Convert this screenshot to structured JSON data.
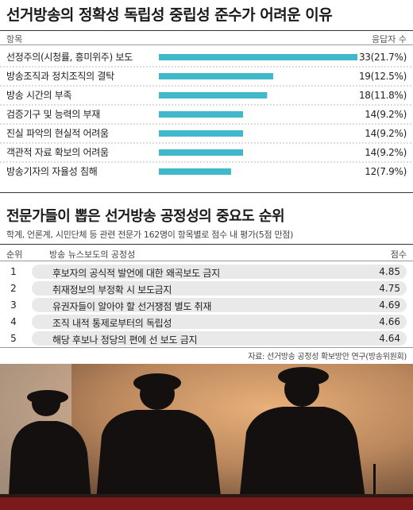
{
  "chart_data": [
    {
      "type": "bar",
      "orientation": "horizontal",
      "title": "선거방송의 정확성 독립성 중립성 준수가 어려운 이유",
      "xlabel": "항목",
      "ylabel": "응답자 수",
      "categories": [
        "선정주의(시청률, 흥미위주) 보도",
        "방송조직과 정치조직의 결탁",
        "방송 시간의 부족",
        "검증기구 및 능력의 부재",
        "진실 파악의 현실적 어려움",
        "객관적 자료 확보의 어려움",
        "방송기자의 자율성 침해"
      ],
      "values": [
        33,
        19,
        18,
        14,
        14,
        14,
        12
      ],
      "percents": [
        "21.7%",
        "12.5%",
        "11.8%",
        "9.2%",
        "9.2%",
        "9.2%",
        "7.9%"
      ],
      "bar_color": "#3fb8c9",
      "xlim": [
        0,
        33
      ]
    },
    {
      "type": "table",
      "title": "전문가들이 뽑은 선거방송 공정성의 중요도 순위",
      "subtitle": "학계, 언론계, 시민단체 등 관련 전문가 162명이 항목별로 점수 내 평가(5점 만점)",
      "columns": [
        "순위",
        "방송 뉴스보도의 공정성",
        "점수"
      ],
      "rows": [
        {
          "rank": "1",
          "item": "후보자의 공식적 발언에 대한 왜곡보도 금지",
          "score": "4.85"
        },
        {
          "rank": "2",
          "item": "취재정보의 부정확 시 보도금지",
          "score": "4.75"
        },
        {
          "rank": "3",
          "item": "유권자들이 알아야 할 선거쟁점 별도 취재",
          "score": "4.69"
        },
        {
          "rank": "4",
          "item": "조직 내적 통제로부터의 독립성",
          "score": "4.66"
        },
        {
          "rank": "5",
          "item": "해당 후보나 정당의 편에 선 보도 금지",
          "score": "4.64"
        }
      ]
    }
  ],
  "source": "자료: 선거방송 공정성 확보방안 연구(방송위원회)",
  "photo": {
    "icon": "silhouettes-of-panel-speakers"
  }
}
